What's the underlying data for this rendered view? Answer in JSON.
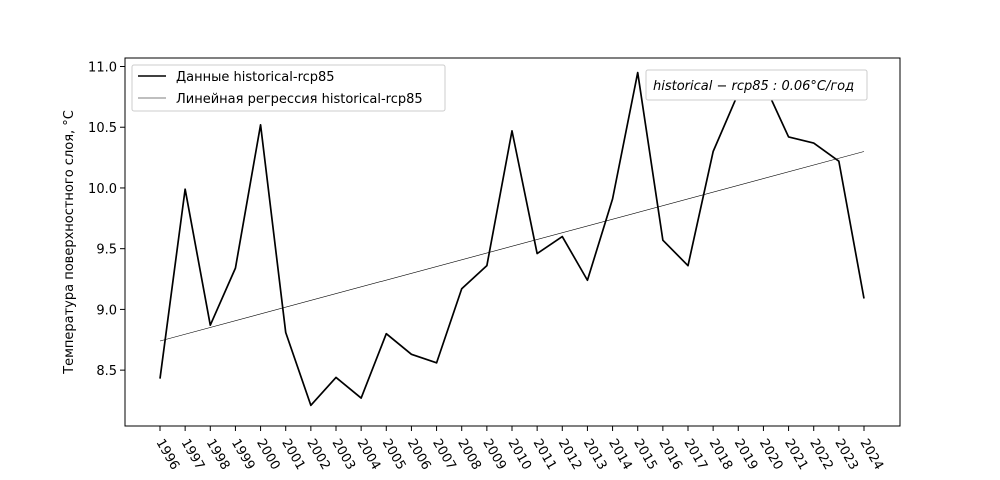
{
  "chart_data": {
    "type": "line",
    "x": [
      1996,
      1997,
      1998,
      1999,
      2000,
      2001,
      2002,
      2003,
      2004,
      2005,
      2006,
      2007,
      2008,
      2009,
      2010,
      2011,
      2012,
      2013,
      2014,
      2015,
      2016,
      2017,
      2018,
      2019,
      2020,
      2021,
      2022,
      2023,
      2024
    ],
    "x_tick_labels": [
      "1996",
      "1997",
      "1998",
      "1999",
      "2000",
      "2001",
      "2002",
      "2003",
      "2004",
      "2005",
      "2006",
      "2007",
      "2008",
      "2009",
      "2010",
      "2011",
      "2012",
      "2013",
      "2014",
      "2015",
      "2016",
      "2017",
      "2018",
      "2019",
      "2020",
      "2021",
      "2022",
      "2023",
      "2024"
    ],
    "series": [
      {
        "name": "Данные historical-rcp85",
        "color": "#000000",
        "values": [
          8.43,
          9.99,
          8.87,
          9.34,
          10.52,
          8.81,
          8.21,
          8.44,
          8.27,
          8.8,
          8.63,
          8.56,
          9.17,
          9.36,
          10.47,
          9.46,
          9.6,
          9.24,
          9.91,
          10.95,
          9.57,
          9.36,
          10.3,
          10.78,
          10.87,
          10.42,
          10.37,
          10.22,
          9.09
        ]
      },
      {
        "name": "Линейная регрессия historical-rcp85",
        "color": "#000000",
        "values": [
          8.74,
          10.3
        ],
        "x": [
          1996,
          2024
        ]
      }
    ],
    "ylabel": "Температура поверхностного слоя, °C",
    "xlabel": "",
    "title": "",
    "ylim": [
      8.04,
      11.07
    ],
    "y_ticks": [
      8.5,
      9.0,
      9.5,
      10.0,
      10.5,
      11.0
    ],
    "y_tick_labels": [
      "8.5",
      "9.0",
      "9.5",
      "10.0",
      "10.5",
      "11.0"
    ],
    "grid": false,
    "legend_position": "top-left",
    "annotation": "historical − rcp85 : 0.06°C/год"
  }
}
